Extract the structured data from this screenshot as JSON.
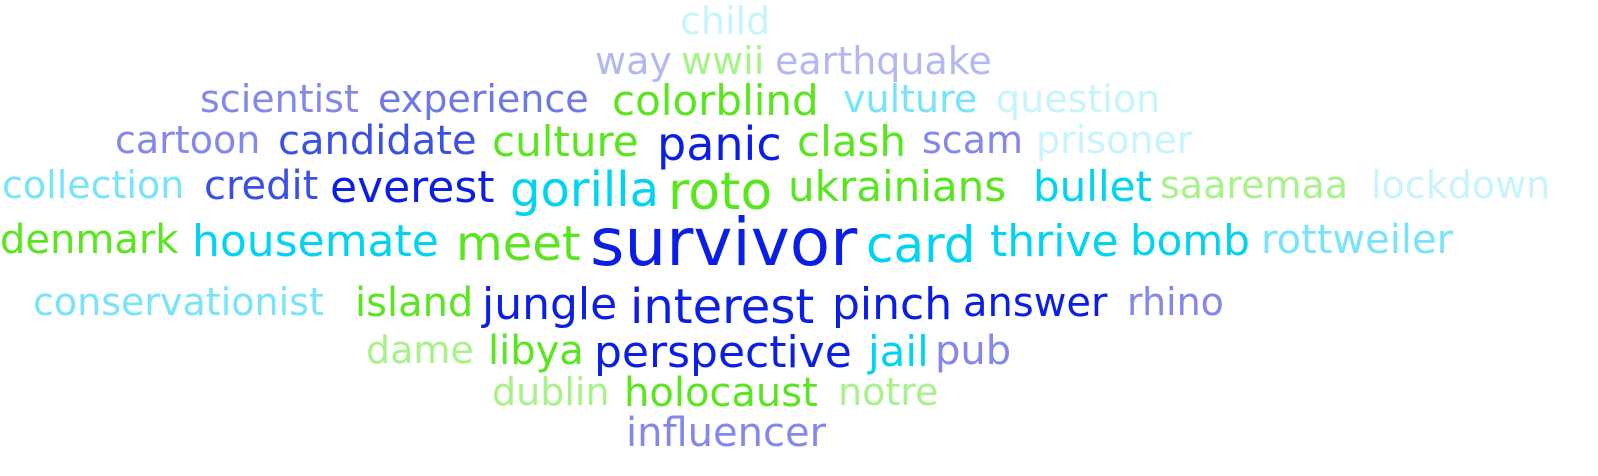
{
  "colors": {
    "blue_dark": "#0a1ee6",
    "blue_mid": "#3a50e6",
    "blue_soft": "#6e78ea",
    "blue_pale": "#8488ec",
    "lavender": "#b4b8f2",
    "cyan": "#00d4f2",
    "cyan_light": "#78e4fa",
    "cyan_pale": "#c8f4fc",
    "green": "#5ae61e",
    "green_light": "#a8f28a"
  },
  "words": [
    {
      "id": "child",
      "text": "child",
      "color": "cyan_pale"
    },
    {
      "id": "way",
      "text": "way",
      "color": "lavender"
    },
    {
      "id": "wwii",
      "text": "wwii",
      "color": "green_light"
    },
    {
      "id": "earthquake",
      "text": "earthquake",
      "color": "lavender"
    },
    {
      "id": "scientist",
      "text": "scientist",
      "color": "blue_pale"
    },
    {
      "id": "experience",
      "text": "experience",
      "color": "blue_soft"
    },
    {
      "id": "colorblind",
      "text": "colorblind",
      "color": "green"
    },
    {
      "id": "vulture",
      "text": "vulture",
      "color": "cyan_light"
    },
    {
      "id": "question",
      "text": "question",
      "color": "cyan_pale"
    },
    {
      "id": "cartoon",
      "text": "cartoon",
      "color": "blue_pale"
    },
    {
      "id": "candidate",
      "text": "candidate",
      "color": "blue_mid"
    },
    {
      "id": "culture",
      "text": "culture",
      "color": "green"
    },
    {
      "id": "panic",
      "text": "panic",
      "color": "blue_dark"
    },
    {
      "id": "clash",
      "text": "clash",
      "color": "green"
    },
    {
      "id": "scam",
      "text": "scam",
      "color": "blue_pale"
    },
    {
      "id": "prisoner",
      "text": "prisoner",
      "color": "cyan_pale"
    },
    {
      "id": "collection",
      "text": "collection",
      "color": "cyan_light"
    },
    {
      "id": "credit",
      "text": "credit",
      "color": "blue_mid"
    },
    {
      "id": "everest",
      "text": "everest",
      "color": "blue_dark"
    },
    {
      "id": "gorilla",
      "text": "gorilla",
      "color": "cyan"
    },
    {
      "id": "roto",
      "text": "roto",
      "color": "green"
    },
    {
      "id": "ukrainians",
      "text": "ukrainians",
      "color": "green"
    },
    {
      "id": "bullet",
      "text": "bullet",
      "color": "cyan"
    },
    {
      "id": "saaremaa",
      "text": "saaremaa",
      "color": "green_light"
    },
    {
      "id": "lockdown",
      "text": "lockdown",
      "color": "cyan_pale"
    },
    {
      "id": "denmark",
      "text": "denmark",
      "color": "green"
    },
    {
      "id": "housemate",
      "text": "housemate",
      "color": "cyan"
    },
    {
      "id": "meet",
      "text": "meet",
      "color": "green"
    },
    {
      "id": "survivor",
      "text": "survivor",
      "color": "blue_dark"
    },
    {
      "id": "card",
      "text": "card",
      "color": "cyan"
    },
    {
      "id": "thrive",
      "text": "thrive",
      "color": "cyan"
    },
    {
      "id": "bomb",
      "text": "bomb",
      "color": "cyan"
    },
    {
      "id": "rottweiler",
      "text": "rottweiler",
      "color": "cyan_light"
    },
    {
      "id": "conservationist",
      "text": "conservationist",
      "color": "cyan_light"
    },
    {
      "id": "island",
      "text": "island",
      "color": "green"
    },
    {
      "id": "jungle",
      "text": "jungle",
      "color": "blue_dark"
    },
    {
      "id": "interest",
      "text": "interest",
      "color": "blue_dark"
    },
    {
      "id": "pinch",
      "text": "pinch",
      "color": "blue_dark"
    },
    {
      "id": "answer",
      "text": "answer",
      "color": "blue_dark"
    },
    {
      "id": "rhino",
      "text": "rhino",
      "color": "blue_pale"
    },
    {
      "id": "dame",
      "text": "dame",
      "color": "green_light"
    },
    {
      "id": "libya",
      "text": "libya",
      "color": "green"
    },
    {
      "id": "perspective",
      "text": "perspective",
      "color": "blue_dark"
    },
    {
      "id": "jail",
      "text": "jail",
      "color": "cyan"
    },
    {
      "id": "pub",
      "text": "pub",
      "color": "blue_pale"
    },
    {
      "id": "dublin",
      "text": "dublin",
      "color": "green_light"
    },
    {
      "id": "holocaust",
      "text": "holocaust",
      "color": "green"
    },
    {
      "id": "notre",
      "text": "notre",
      "color": "green_light"
    },
    {
      "id": "influencer",
      "text": "influencer",
      "color": "blue_pale"
    }
  ]
}
